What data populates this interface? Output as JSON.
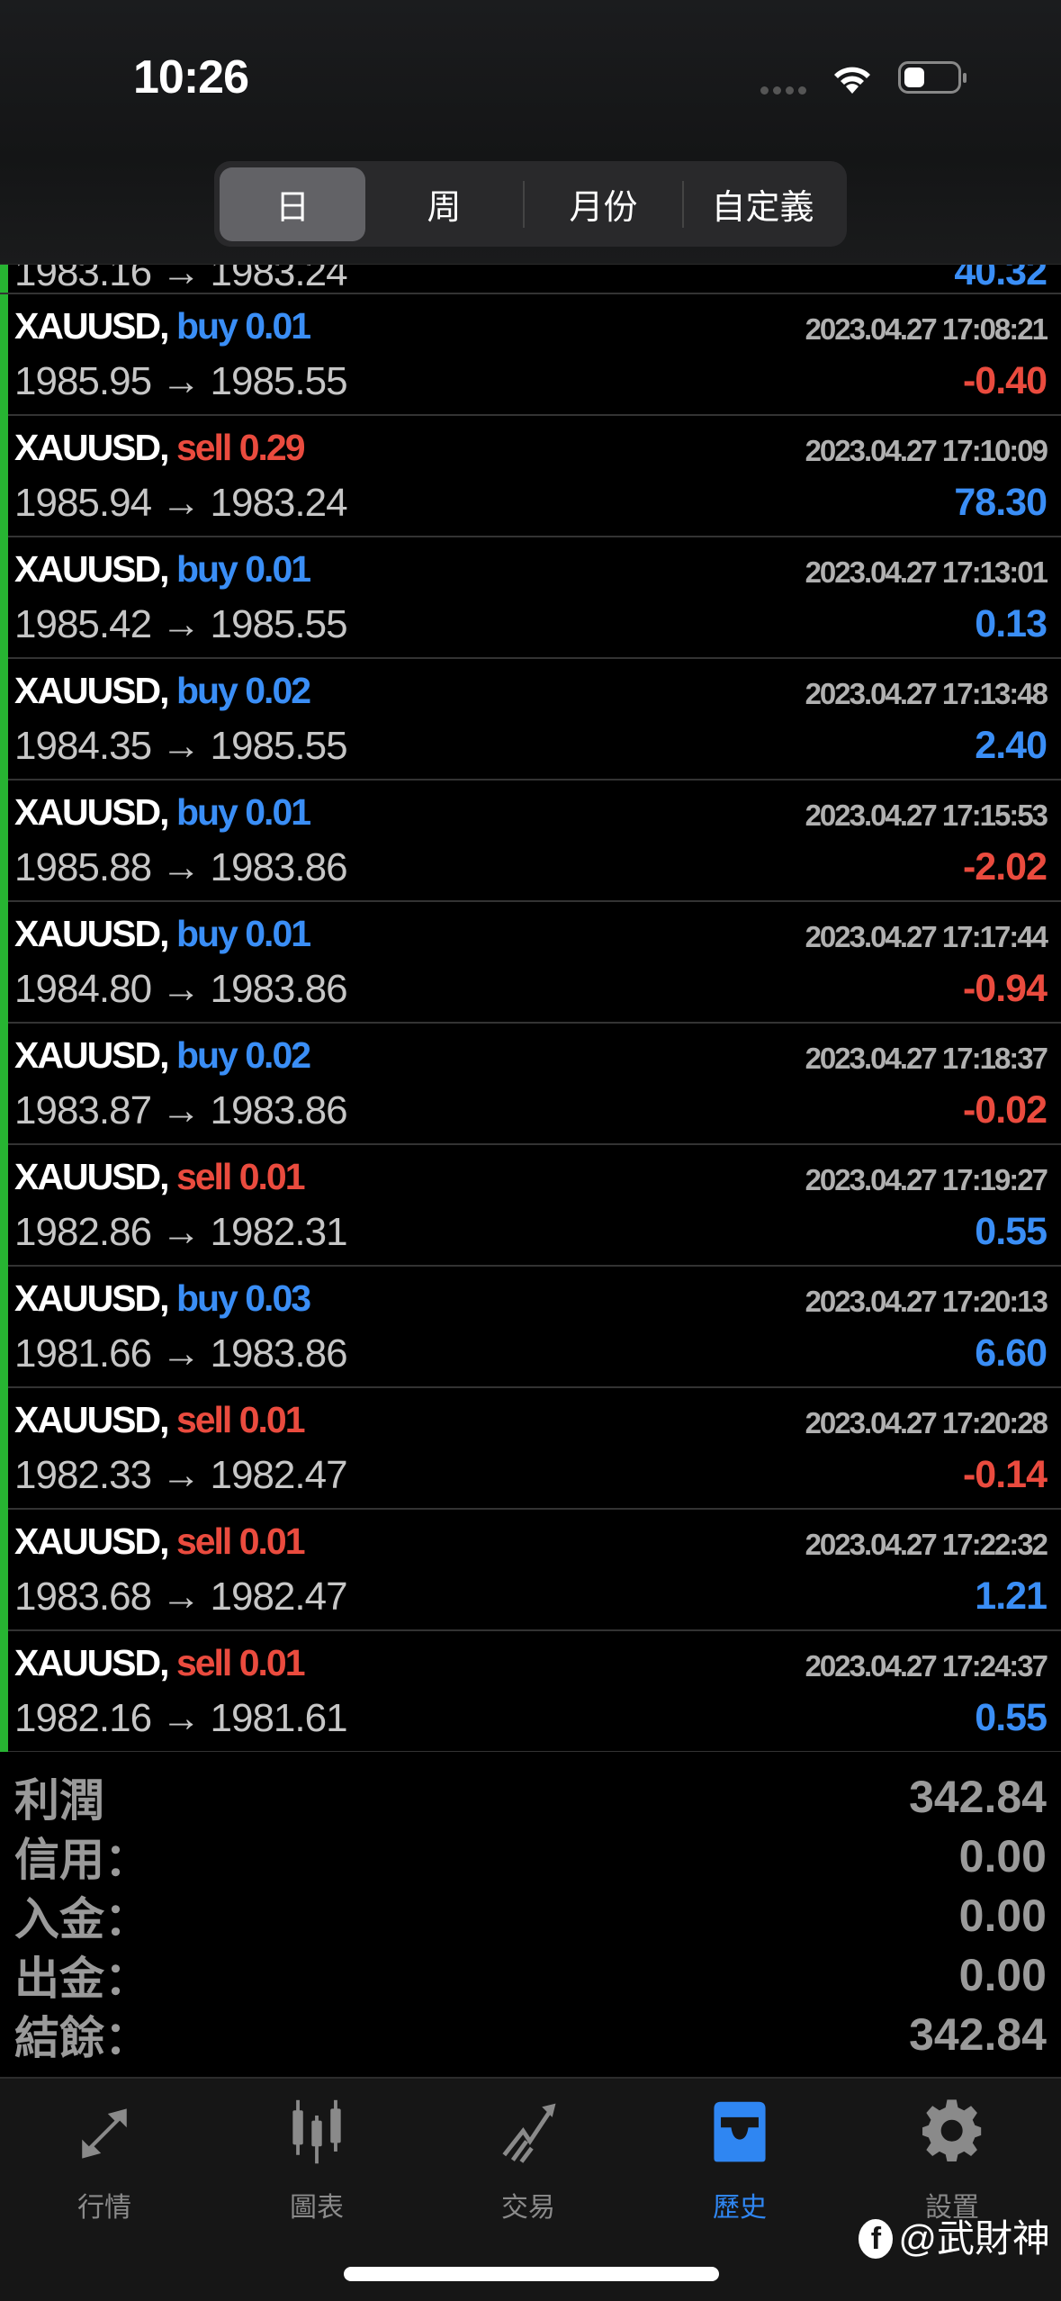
{
  "status": {
    "time": "10:26"
  },
  "segments": [
    "日",
    "周",
    "月份",
    "自定義"
  ],
  "partial_row": {
    "prices": "1983.16 → 1983.24",
    "profit": "40.32"
  },
  "deals": [
    {
      "symbol": "XAUUSD,",
      "side": "buy",
      "volume": "0.01",
      "time": "2023.04.27 17:08:21",
      "prices": "1985.95 → 1985.55",
      "profit": "-0.40"
    },
    {
      "symbol": "XAUUSD,",
      "side": "sell",
      "volume": "0.29",
      "time": "2023.04.27 17:10:09",
      "prices": "1985.94 → 1983.24",
      "profit": "78.30"
    },
    {
      "symbol": "XAUUSD,",
      "side": "buy",
      "volume": "0.01",
      "time": "2023.04.27 17:13:01",
      "prices": "1985.42 → 1985.55",
      "profit": "0.13"
    },
    {
      "symbol": "XAUUSD,",
      "side": "buy",
      "volume": "0.02",
      "time": "2023.04.27 17:13:48",
      "prices": "1984.35 → 1985.55",
      "profit": "2.40"
    },
    {
      "symbol": "XAUUSD,",
      "side": "buy",
      "volume": "0.01",
      "time": "2023.04.27 17:15:53",
      "prices": "1985.88 → 1983.86",
      "profit": "-2.02"
    },
    {
      "symbol": "XAUUSD,",
      "side": "buy",
      "volume": "0.01",
      "time": "2023.04.27 17:17:44",
      "prices": "1984.80 → 1983.86",
      "profit": "-0.94"
    },
    {
      "symbol": "XAUUSD,",
      "side": "buy",
      "volume": "0.02",
      "time": "2023.04.27 17:18:37",
      "prices": "1983.87 → 1983.86",
      "profit": "-0.02"
    },
    {
      "symbol": "XAUUSD,",
      "side": "sell",
      "volume": "0.01",
      "time": "2023.04.27 17:19:27",
      "prices": "1982.86 → 1982.31",
      "profit": "0.55"
    },
    {
      "symbol": "XAUUSD,",
      "side": "buy",
      "volume": "0.03",
      "time": "2023.04.27 17:20:13",
      "prices": "1981.66 → 1983.86",
      "profit": "6.60"
    },
    {
      "symbol": "XAUUSD,",
      "side": "sell",
      "volume": "0.01",
      "time": "2023.04.27 17:20:28",
      "prices": "1982.33 → 1982.47",
      "profit": "-0.14"
    },
    {
      "symbol": "XAUUSD,",
      "side": "sell",
      "volume": "0.01",
      "time": "2023.04.27 17:22:32",
      "prices": "1983.68 → 1982.47",
      "profit": "1.21"
    },
    {
      "symbol": "XAUUSD,",
      "side": "sell",
      "volume": "0.01",
      "time": "2023.04.27 17:24:37",
      "prices": "1982.16 → 1981.61",
      "profit": "0.55"
    }
  ],
  "summary": [
    {
      "label": "利潤",
      "value": "342.84"
    },
    {
      "label": "信用：",
      "value": "0.00"
    },
    {
      "label": "入金：",
      "value": "0.00"
    },
    {
      "label": "出金：",
      "value": "0.00"
    },
    {
      "label": "結餘：",
      "value": "342.84"
    }
  ],
  "tabs": [
    {
      "label": "行情",
      "icon": "quotes-arrows-icon"
    },
    {
      "label": "圖表",
      "icon": "candlestick-chart-icon"
    },
    {
      "label": "交易",
      "icon": "trade-trend-icon"
    },
    {
      "label": "歷史",
      "icon": "history-inbox-icon",
      "active": true
    },
    {
      "label": "設置",
      "icon": "gear-icon"
    }
  ],
  "watermark": "@武財神",
  "colors": {
    "buy": "#3a8ef6",
    "sell": "#ea4b3e",
    "active_tab": "#2f86f2",
    "row_marker": "#27b432"
  }
}
